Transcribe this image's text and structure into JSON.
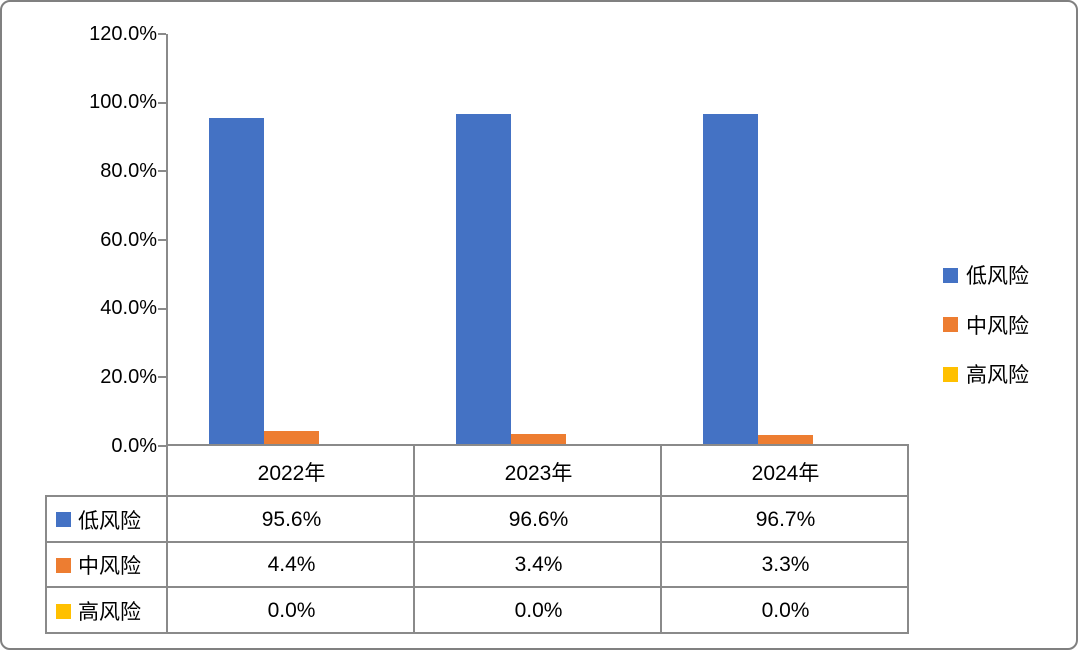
{
  "chart_data": {
    "type": "bar",
    "title": "",
    "xlabel": "",
    "ylabel": "",
    "categories": [
      "2022年",
      "2023年",
      "2024年"
    ],
    "series": [
      {
        "name": "低风险",
        "color": "#4472C4",
        "values": [
          95.6,
          96.6,
          96.7
        ],
        "labels": [
          "95.6%",
          "96.6%",
          "96.7%"
        ]
      },
      {
        "name": "中风险",
        "color": "#ED7D31",
        "values": [
          4.4,
          3.4,
          3.3
        ],
        "labels": [
          "4.4%",
          "3.4%",
          "3.3%"
        ]
      },
      {
        "name": "高风险",
        "color": "#FFC000",
        "values": [
          0.0,
          0.0,
          0.0
        ],
        "labels": [
          "0.0%",
          "0.0%",
          "0.0%"
        ]
      }
    ],
    "ylim": [
      0,
      120
    ],
    "ytick_step": 20,
    "ytick_labels": [
      "0.0%",
      "20.0%",
      "40.0%",
      "60.0%",
      "80.0%",
      "100.0%",
      "120.0%"
    ],
    "grid": false,
    "legend_position": "right",
    "has_data_table": true
  },
  "colors": {
    "axis_line": "#8a8a8a",
    "table_border": "#8a8a8a",
    "frame_border": "#808080",
    "background": "#ffffff",
    "text": "#000000"
  }
}
